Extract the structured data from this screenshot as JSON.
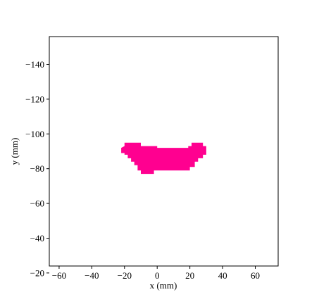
{
  "chart_data": {
    "type": "heatmap",
    "title": "",
    "xlabel": "x (mm)",
    "ylabel": "y (mm)",
    "xlim": [
      -66,
      74
    ],
    "ylim": [
      -24,
      -156
    ],
    "y_axis_inverted": true,
    "x_ticks": [
      -60,
      -40,
      -20,
      0,
      20,
      40,
      60
    ],
    "y_ticks": [
      -140,
      -120,
      -100,
      -80,
      -60,
      -40,
      -20
    ],
    "x_tick_labels": [
      "−60",
      "−40",
      "−20",
      "0",
      "20",
      "40",
      "60"
    ],
    "y_tick_labels": [
      "−140",
      "−120",
      "−100",
      "−80",
      "−60",
      "−40",
      "−20"
    ],
    "grid": false,
    "legend": "none",
    "series": [
      {
        "mask_color": "#ff0090",
        "region_polygon_xy": [
          [
            -22,
            -92
          ],
          [
            -22,
            -89
          ],
          [
            -20,
            -89
          ],
          [
            -20,
            -88
          ],
          [
            -18,
            -88
          ],
          [
            -18,
            -86
          ],
          [
            -16,
            -86
          ],
          [
            -16,
            -84
          ],
          [
            -14,
            -84
          ],
          [
            -14,
            -82
          ],
          [
            -12,
            -82
          ],
          [
            -12,
            -79
          ],
          [
            -10,
            -79
          ],
          [
            -10,
            -77
          ],
          [
            -2,
            -77
          ],
          [
            -2,
            -79
          ],
          [
            20,
            -79
          ],
          [
            20,
            -81
          ],
          [
            23,
            -81
          ],
          [
            23,
            -84
          ],
          [
            25,
            -84
          ],
          [
            25,
            -86
          ],
          [
            28,
            -86
          ],
          [
            28,
            -88
          ],
          [
            30,
            -88
          ],
          [
            30,
            -93
          ],
          [
            28,
            -93
          ],
          [
            28,
            -95
          ],
          [
            21,
            -95
          ],
          [
            21,
            -93
          ],
          [
            19,
            -93
          ],
          [
            19,
            -92
          ],
          [
            0,
            -92
          ],
          [
            0,
            -93
          ],
          [
            -10,
            -93
          ],
          [
            -10,
            -95
          ],
          [
            -20,
            -95
          ],
          [
            -20,
            -93
          ]
        ]
      }
    ]
  }
}
